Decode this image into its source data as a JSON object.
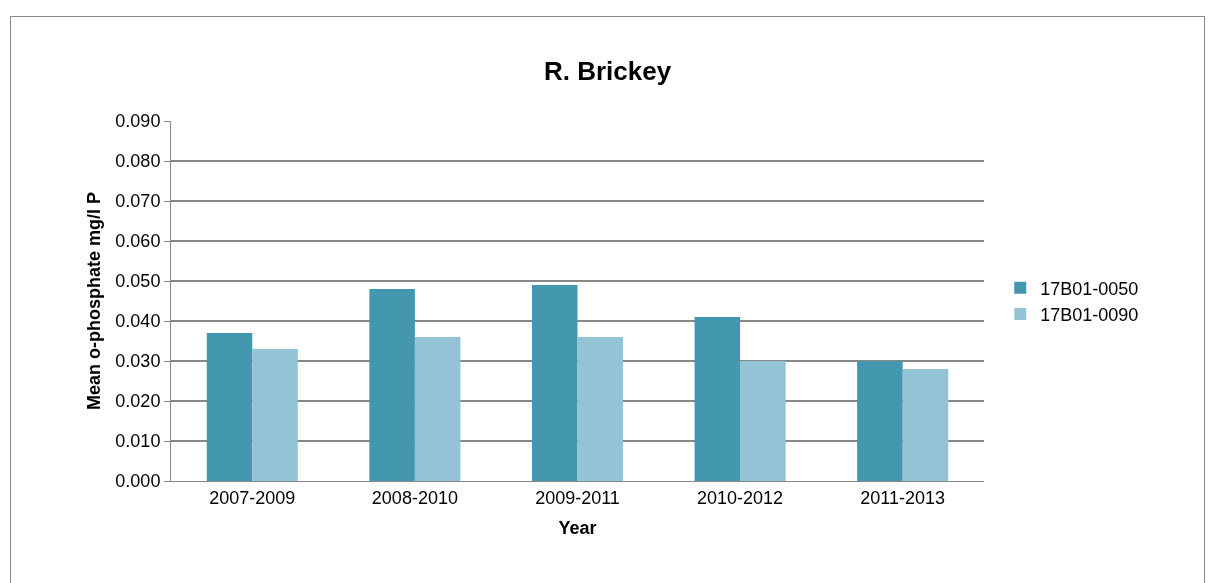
{
  "chart_data": {
    "type": "bar",
    "title": "R. Brickey",
    "xlabel": "Year",
    "ylabel": "Mean o-phosphate mg/l P",
    "categories": [
      "2007-2009",
      "2008-2010",
      "2009-2011",
      "2010-2012",
      "2011-2013"
    ],
    "series": [
      {
        "name": "17B01-0050",
        "color": "#4398b0",
        "values": [
          0.037,
          0.048,
          0.049,
          0.041,
          0.03
        ]
      },
      {
        "name": "17B01-0090",
        "color": "#93c3d5",
        "values": [
          0.033,
          0.036,
          0.036,
          0.03,
          0.028
        ]
      }
    ],
    "ylim": [
      0,
      0.09
    ],
    "yticks": [
      {
        "value": 0,
        "label": "0.000"
      },
      {
        "value": 0.01,
        "label": "0.010"
      },
      {
        "value": 0.02,
        "label": "0.020"
      },
      {
        "value": 0.03,
        "label": "0.030"
      },
      {
        "value": 0.04,
        "label": "0.040"
      },
      {
        "value": 0.05,
        "label": "0.050"
      },
      {
        "value": 0.06,
        "label": "0.060"
      },
      {
        "value": 0.07,
        "label": "0.070"
      },
      {
        "value": 0.08,
        "label": "0.080"
      },
      {
        "value": 0.09,
        "label": "0.090"
      }
    ],
    "grid": "y",
    "legend": "right"
  }
}
